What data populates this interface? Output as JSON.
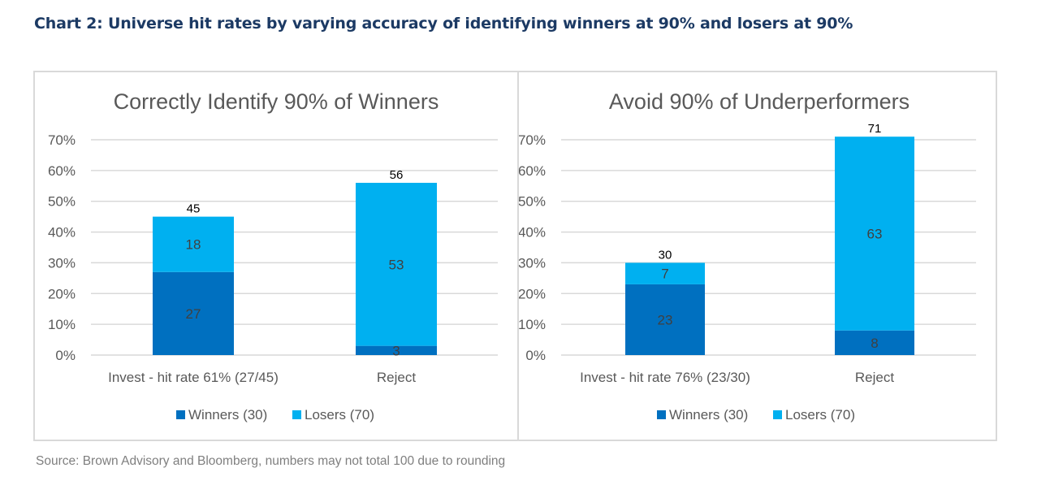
{
  "title": "Chart 2: Universe hit rates by varying accuracy of identifying winners at 90% and losers at 90%",
  "source": "Source: Brown Advisory and Bloomberg, numbers may not total 100 due to rounding",
  "colors": {
    "winners": "#0070c0",
    "losers": "#00b0f0",
    "grid": "#d9d9d9",
    "axis_text": "#595959",
    "segment_label": "#404040",
    "total_label": "#000000"
  },
  "chart_data": [
    {
      "type": "bar",
      "stacked": true,
      "title": "Correctly Identify 90% of Winners",
      "categories": [
        "Invest - hit rate 61% (27/45)",
        "Reject"
      ],
      "series": [
        {
          "name": "Winners (30)",
          "values": [
            27,
            3
          ]
        },
        {
          "name": "Losers (70)",
          "values": [
            18,
            53
          ]
        }
      ],
      "totals": [
        45,
        56
      ],
      "ylim": [
        0,
        70
      ],
      "yticks": [
        "0%",
        "10%",
        "20%",
        "30%",
        "40%",
        "50%",
        "60%",
        "70%"
      ],
      "grid": true,
      "legend": "bottom"
    },
    {
      "type": "bar",
      "stacked": true,
      "title": "Avoid 90% of Underperformers",
      "categories": [
        "Invest - hit rate 76% (23/30)",
        "Reject"
      ],
      "series": [
        {
          "name": "Winners (30)",
          "values": [
            23,
            8
          ]
        },
        {
          "name": "Losers (70)",
          "values": [
            7,
            63
          ]
        }
      ],
      "totals": [
        30,
        71
      ],
      "ylim": [
        0,
        70
      ],
      "yticks": [
        "0%",
        "10%",
        "20%",
        "30%",
        "40%",
        "50%",
        "60%",
        "70%"
      ],
      "grid": true,
      "legend": "bottom"
    }
  ]
}
